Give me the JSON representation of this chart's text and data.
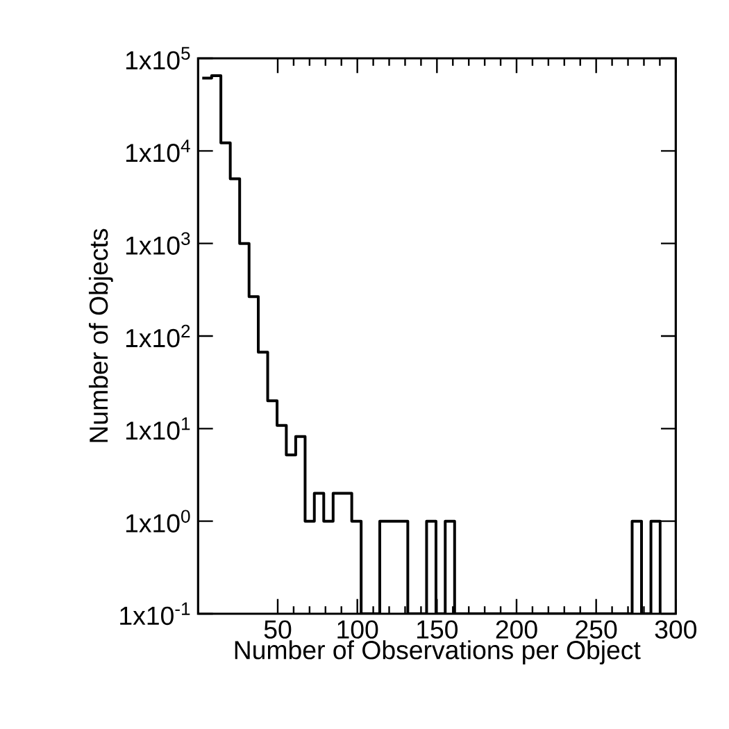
{
  "chart_data": {
    "type": "histogram",
    "xlabel": "Number of Observations per Object",
    "ylabel": "Number of Objects",
    "bins": [
      2.6,
      8.5,
      14.3,
      20.2,
      26.1,
      32.0,
      37.8,
      43.7,
      49.6,
      55.4,
      61.3,
      67.2,
      73.0,
      78.9,
      84.8,
      90.7,
      96.5,
      102.4,
      108.3,
      114.1,
      120.0,
      125.9,
      131.7,
      137.6,
      143.5,
      149.4,
      155.2,
      161.1,
      167.0,
      172.8,
      178.7,
      184.6,
      190.4,
      196.3,
      202.2,
      208.1,
      213.9,
      219.8,
      225.7,
      231.5,
      237.4,
      243.3,
      249.1,
      255.0,
      260.9,
      266.8,
      272.6,
      278.5,
      284.4,
      290.2
    ],
    "values": [
      61000,
      65000,
      12200,
      5000,
      1000,
      266,
      67,
      20,
      10.8,
      5.2,
      8.2,
      1,
      2,
      1,
      2,
      2,
      1,
      null,
      null,
      1,
      1,
      1,
      null,
      null,
      1,
      null,
      1,
      null,
      null,
      null,
      null,
      null,
      null,
      null,
      null,
      null,
      null,
      null,
      null,
      null,
      null,
      null,
      null,
      null,
      null,
      null,
      1,
      null,
      1
    ],
    "color": "#000000",
    "log": "y",
    "xlim": [
      0,
      300
    ],
    "xticks": [
      50,
      100,
      150,
      200,
      250,
      300
    ],
    "ylim": [
      0.1,
      100000
    ],
    "yticks": [
      {
        "value": 0.1,
        "label": "1x10$^{-1}$"
      },
      {
        "value": 1,
        "label": "1x10$^{0}$"
      },
      {
        "value": 10,
        "label": "1x10$^{1}$"
      },
      {
        "value": 100,
        "label": "1x10$^{2}$"
      },
      {
        "value": 1000,
        "label": "1x10$^{3}$"
      },
      {
        "value": 10000,
        "label": "1x10$^{4}$"
      },
      {
        "value": 100000,
        "label": "1x10$^{5}$"
      }
    ],
    "grid": false
  }
}
